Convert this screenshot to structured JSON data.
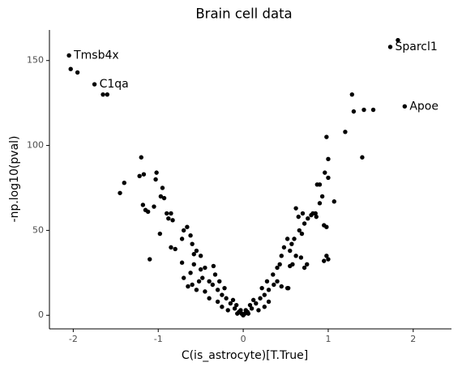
{
  "chart_data": {
    "type": "scatter",
    "title": "Brain cell data",
    "x_label": "C(is_astrocyte)[T.True]",
    "y_label": "-np.log10(pval)",
    "color": "#000000",
    "xlim": [
      -2.28,
      2.45
    ],
    "ylim": [
      -8,
      168
    ],
    "xticks": [
      -2,
      -1,
      0,
      1,
      2
    ],
    "yticks": [
      0,
      50,
      100,
      150
    ],
    "annotations": [
      {
        "text": "Tmsb4x",
        "x": -2.05,
        "y": 153
      },
      {
        "text": "C1qa",
        "x": -1.75,
        "y": 136
      },
      {
        "text": "Sparcl1",
        "x": 1.73,
        "y": 158
      },
      {
        "text": "Apoe",
        "x": 1.9,
        "y": 123
      }
    ],
    "x": [
      -2.05,
      -2.03,
      -1.95,
      -1.75,
      -1.65,
      -1.6,
      -1.2,
      -1.45,
      -1.4,
      -1.22,
      -1.17,
      -1.02,
      -1.03,
      -0.95,
      -0.97,
      -0.93,
      -1.05,
      -1.18,
      -1.15,
      -0.9,
      -0.85,
      -0.88,
      -0.83,
      -1.12,
      -0.98,
      -1.1,
      -0.85,
      -0.8,
      -0.7,
      -0.66,
      -0.62,
      -0.72,
      -0.6,
      -0.55,
      -0.58,
      -0.5,
      -0.72,
      -0.58,
      -0.45,
      -0.35,
      -0.7,
      -0.6,
      -0.52,
      -0.48,
      -0.4,
      -0.36,
      -0.3,
      -0.25,
      -0.2,
      -0.15,
      -0.1,
      -0.05,
      -0.02,
      -0.3,
      -0.25,
      -0.18,
      -0.4,
      -0.45,
      -0.33,
      -0.28,
      -0.22,
      -0.12,
      -0.08,
      -0.55,
      -0.62,
      -0.65,
      -0.5,
      1.82,
      1.73,
      1.9,
      1.28,
      1.3,
      1.42,
      1.53,
      1.2,
      1.4,
      0.98,
      1.0,
      0.96,
      1.0,
      1.07,
      0.9,
      0.87,
      0.93,
      0.9,
      0.85,
      0.82,
      0.8,
      0.86,
      0.95,
      0.98,
      0.76,
      0.7,
      0.65,
      0.62,
      0.72,
      0.66,
      0.69,
      0.6,
      0.57,
      0.52,
      0.48,
      0.55,
      0.62,
      0.58,
      0.55,
      0.45,
      0.43,
      0.4,
      0.98,
      1.0,
      0.95,
      0.72,
      0.75,
      0.68,
      0.52,
      0.53,
      0.45,
      0.4,
      0.36,
      0.3,
      0.25,
      0.2,
      0.15,
      0.1,
      0.05,
      0.02,
      0.3,
      0.25,
      0.18,
      0.35,
      0.28,
      0.22,
      0.12,
      0.08,
      0.0,
      0.03,
      -0.03,
      0.06,
      -0.07
    ],
    "values": [
      153,
      145,
      143,
      136,
      130,
      130,
      93,
      72,
      78,
      82,
      83,
      84,
      80,
      75,
      70,
      69,
      64,
      65,
      62,
      60,
      60,
      57,
      56,
      61,
      48,
      33,
      40,
      39,
      50,
      52,
      47,
      45,
      42,
      38,
      36,
      35,
      31,
      30,
      28,
      29,
      22,
      18,
      20,
      22,
      20,
      18,
      15,
      12,
      10,
      7,
      4,
      2,
      1,
      8,
      5,
      3,
      10,
      14,
      24,
      20,
      16,
      9,
      6,
      15,
      25,
      17,
      27,
      162,
      158,
      123,
      130,
      120,
      121,
      121,
      108,
      93,
      105,
      92,
      84,
      81,
      67,
      77,
      77,
      70,
      66,
      60,
      60,
      59,
      58,
      53,
      52,
      57,
      60,
      58,
      63,
      54,
      50,
      48,
      45,
      42,
      45,
      40,
      38,
      35,
      30,
      29,
      35,
      30,
      28,
      35,
      33,
      32,
      28,
      30,
      34,
      16,
      16,
      17,
      20,
      18,
      15,
      12,
      10,
      7,
      4,
      2,
      1,
      8,
      5,
      3,
      24,
      20,
      16,
      9,
      6,
      0,
      3,
      3,
      1,
      1
    ]
  }
}
